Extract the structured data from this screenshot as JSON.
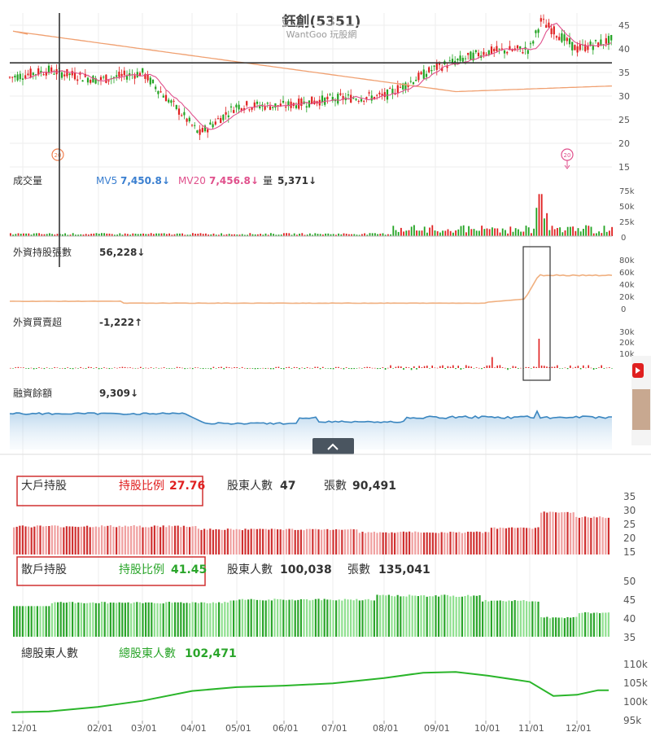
{
  "title": "鈺創(5351)",
  "watermark": "WantGoo 玩股網",
  "colors": {
    "up": "#e02020",
    "down": "#22a322",
    "ma_long": "#f0a070",
    "ma_short": "#e0508c",
    "blue": "#3a7fd0",
    "orange": "#f0b080"
  },
  "price_panel": {
    "yticks": [
      "45",
      "40",
      "35",
      "30",
      "25",
      "20",
      "15"
    ],
    "ylim": [
      15,
      47
    ],
    "ref_line": 37.1,
    "marker_left": "20",
    "marker_right": "20"
  },
  "volume_panel": {
    "label": "成交量",
    "mv5_label": "MV5",
    "mv5_value": "7,450.8↓",
    "mv20_label": "MV20",
    "mv20_value": "7,456.8↓",
    "vol_label": "量",
    "vol_value": "5,371↓",
    "yticks": [
      "75k",
      "50k",
      "25k",
      "0"
    ]
  },
  "foreign_hold_panel": {
    "label": "外資持股張數",
    "value": "56,228↓",
    "yticks": [
      "80k",
      "60k",
      "40k",
      "20k",
      "0"
    ]
  },
  "foreign_net_panel": {
    "label": "外資買賣超",
    "value": "-1,222↑",
    "yticks": [
      "30k",
      "20k",
      "10k"
    ]
  },
  "margin_panel": {
    "label": "融資餘額",
    "value": "9,309↓"
  },
  "big_holder": {
    "label": "大戶持股",
    "ratio_label": "持股比例",
    "ratio_value": "27.76",
    "holders_label": "股東人數",
    "holders_value": "47",
    "shares_label": "張數",
    "shares_value": "90,491",
    "yticks": [
      "35",
      "30",
      "25",
      "20",
      "15"
    ]
  },
  "retail_holder": {
    "label": "散戶持股",
    "ratio_label": "持股比例",
    "ratio_value": "41.45",
    "holders_label": "股東人數",
    "holders_value": "100,038",
    "shares_label": "張數",
    "shares_value": "135,041",
    "yticks": [
      "50",
      "45",
      "40",
      "35"
    ]
  },
  "total_holders": {
    "label": "總股東人數",
    "value_label": "總股東人數",
    "value": "102,471",
    "yticks": [
      "110k",
      "105k",
      "100k",
      "95k"
    ]
  },
  "x_axis": [
    "12/01",
    "02/01",
    "03/01",
    "04/01",
    "05/01",
    "06/01",
    "07/01",
    "08/01",
    "09/01",
    "10/01",
    "11/01",
    "12/01"
  ],
  "chart_data": {
    "type": "line",
    "title": "鈺創(5351)",
    "price_ylim": [
      15,
      47
    ],
    "price_series": [
      {
        "x": "12/01",
        "y": 34
      },
      {
        "x": "01/01",
        "y": 35.5
      },
      {
        "x": "02/01",
        "y": 33.5
      },
      {
        "x": "03/01",
        "y": 35
      },
      {
        "x": "04/01",
        "y": 26
      },
      {
        "x": "04/15",
        "y": 22
      },
      {
        "x": "05/01",
        "y": 28
      },
      {
        "x": "06/01",
        "y": 28
      },
      {
        "x": "07/01",
        "y": 29.5
      },
      {
        "x": "08/01",
        "y": 30
      },
      {
        "x": "09/01",
        "y": 36
      },
      {
        "x": "10/01",
        "y": 39.5
      },
      {
        "x": "11/01",
        "y": 40
      },
      {
        "x": "11/15",
        "y": 46
      },
      {
        "x": "12/01",
        "y": 40
      },
      {
        "x": "12/20",
        "y": 42
      }
    ],
    "big_holder_ratio_ylim": [
      15,
      35
    ],
    "big_holder_ratio_last": 27.76,
    "retail_ratio_ylim": [
      35,
      50
    ],
    "retail_ratio_last": 41.45,
    "total_holders_ylim": [
      95000,
      110000
    ],
    "total_holders_last": 102471
  }
}
